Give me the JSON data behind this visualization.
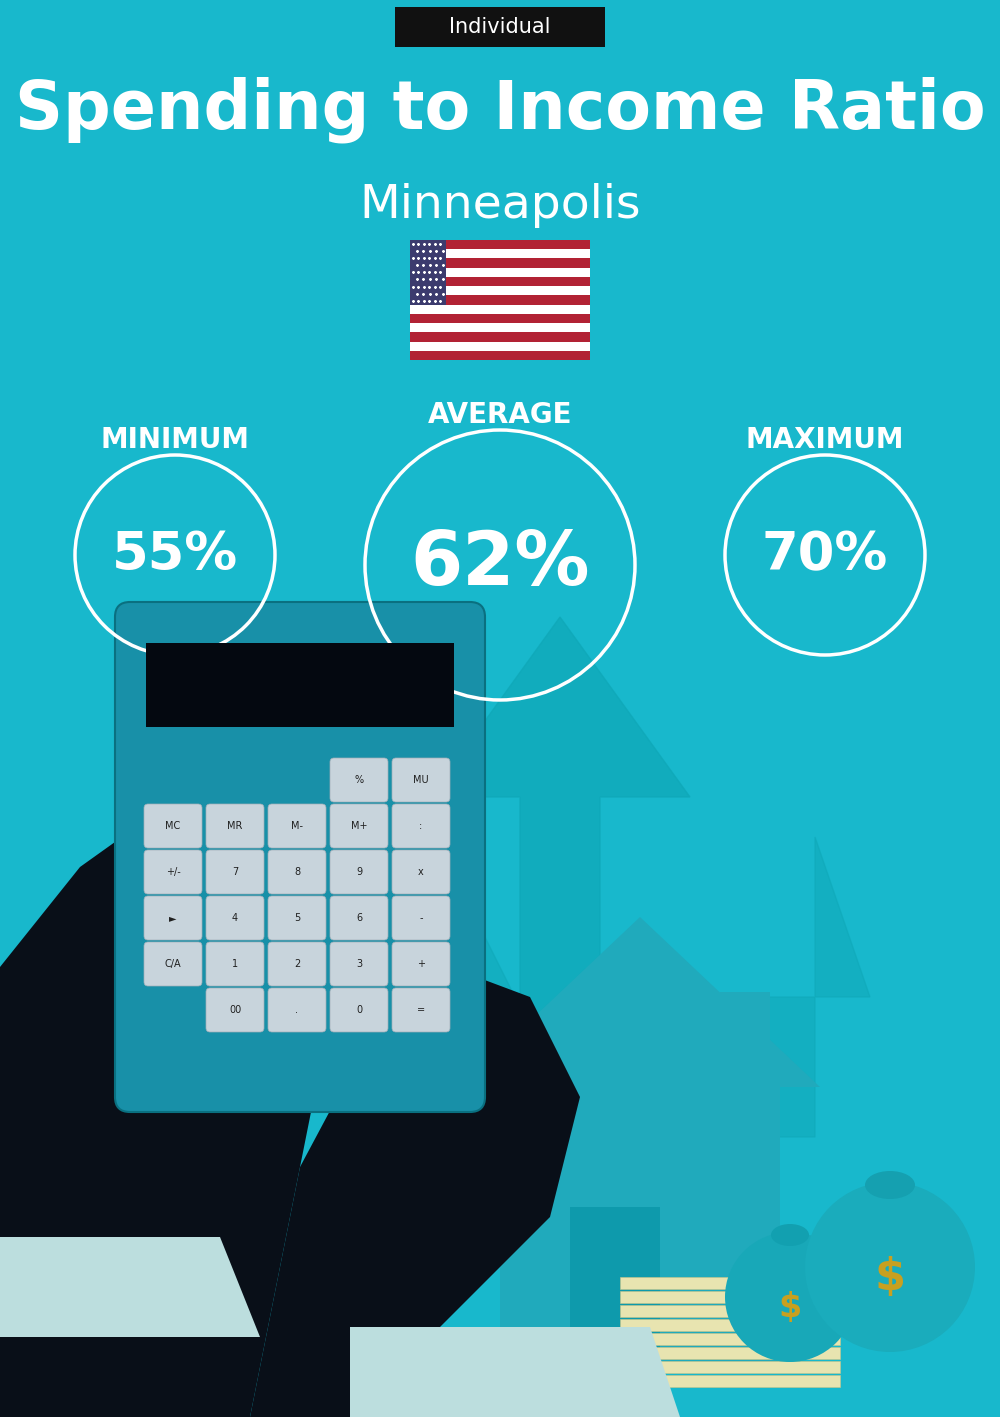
{
  "bg_color": "#18B8CC",
  "title_main": "Spending to Income Ratio",
  "title_city": "Minneapolis",
  "label_tag": "Individual",
  "tag_bg": "#111111",
  "tag_text_color": "#ffffff",
  "min_label": "MINIMUM",
  "avg_label": "AVERAGE",
  "max_label": "MAXIMUM",
  "min_value": "55%",
  "avg_value": "62%",
  "max_value": "70%",
  "text_color": "white",
  "title_fontsize": 48,
  "city_fontsize": 34,
  "label_fontsize": 20,
  "pct_fontsize_sm": 38,
  "pct_fontsize_lg": 54,
  "tag_fontsize": 15,
  "circle_lw": 2.5,
  "fig_w": 10.0,
  "fig_h": 14.17,
  "dpi": 100
}
